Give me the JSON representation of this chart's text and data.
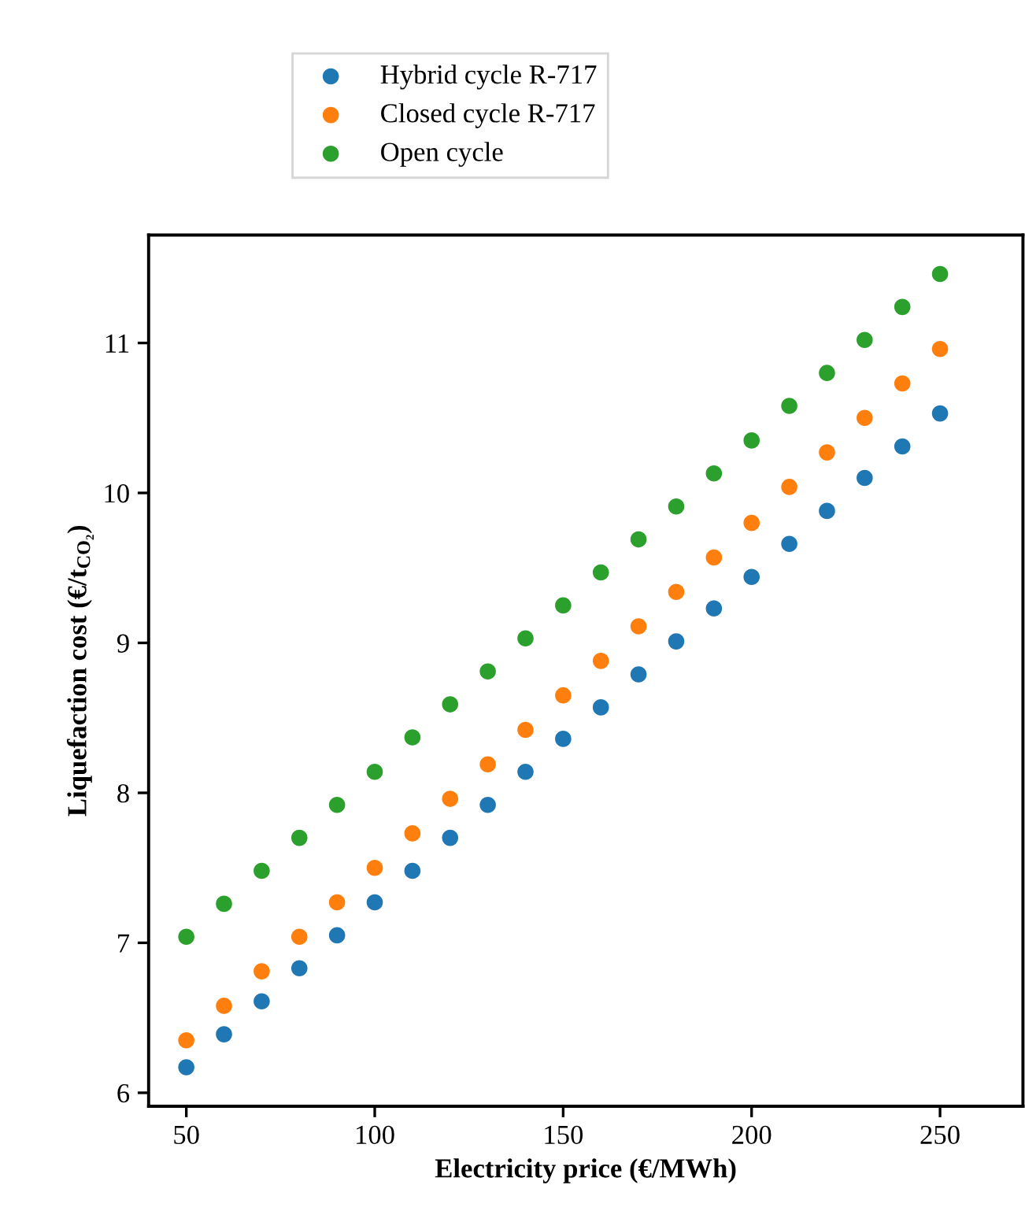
{
  "chart_data": {
    "type": "scatter",
    "xlabel": "Electricity price (€/MWh)",
    "ylabel": "Liquefaction cost (€/t$_{CO₂}$)",
    "x": [
      50,
      60,
      70,
      80,
      90,
      100,
      110,
      120,
      130,
      140,
      150,
      160,
      170,
      180,
      190,
      200,
      210,
      220,
      230,
      240,
      250
    ],
    "series": [
      {
        "name": "Hybrid cycle R-717",
        "color": "#1f77b4",
        "values": [
          6.17,
          6.39,
          6.61,
          6.83,
          7.05,
          7.27,
          7.48,
          7.7,
          7.92,
          8.14,
          8.36,
          8.57,
          8.79,
          9.01,
          9.23,
          9.44,
          9.66,
          9.88,
          10.1,
          10.31,
          10.53
        ]
      },
      {
        "name": "Closed cycle R-717",
        "color": "#ff7f0e",
        "values": [
          6.35,
          6.58,
          6.81,
          7.04,
          7.27,
          7.5,
          7.73,
          7.96,
          8.19,
          8.42,
          8.65,
          8.88,
          9.11,
          9.34,
          9.57,
          9.8,
          10.04,
          10.27,
          10.5,
          10.73,
          10.96
        ]
      },
      {
        "name": "Open cycle",
        "color": "#2ca02c",
        "values": [
          7.04,
          7.26,
          7.48,
          7.7,
          7.92,
          8.14,
          8.37,
          8.59,
          8.81,
          9.03,
          9.25,
          9.47,
          9.69,
          9.91,
          10.13,
          10.35,
          10.58,
          10.8,
          11.02,
          11.24,
          11.46
        ]
      }
    ],
    "xlim": [
      40,
      272
    ],
    "xticks": [
      50,
      100,
      150,
      200,
      250
    ],
    "ylim": [
      5.91,
      11.72
    ],
    "yticks": [
      6,
      7,
      8,
      9,
      10,
      11
    ],
    "marker": "circle",
    "legend": "top",
    "grid": false
  }
}
